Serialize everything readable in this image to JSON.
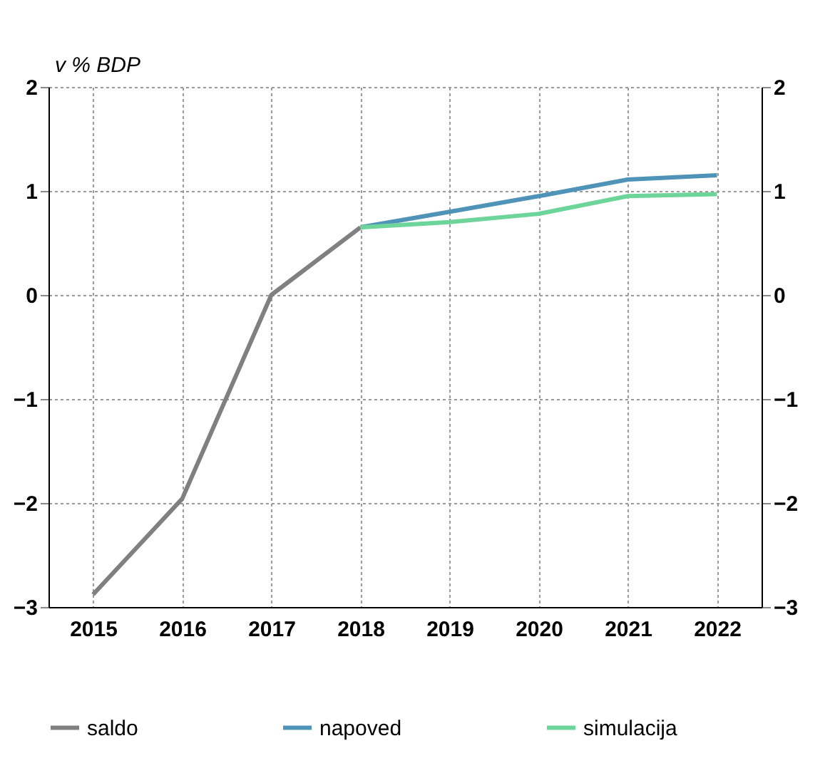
{
  "chart_data": {
    "type": "line",
    "ylabel": "v % BDP",
    "categories": [
      "2015",
      "2016",
      "2017",
      "2018",
      "2019",
      "2020",
      "2021",
      "2022"
    ],
    "series": [
      {
        "name": "saldo",
        "color": "#808080",
        "values": [
          -2.88,
          -1.96,
          0,
          0.65,
          null,
          null,
          null,
          null
        ]
      },
      {
        "name": "napoved",
        "color": "#4f93b8",
        "values": [
          null,
          null,
          null,
          0.65,
          0.8,
          0.95,
          1.11,
          1.15
        ]
      },
      {
        "name": "simulacija",
        "color": "#6dd49a",
        "values": [
          null,
          null,
          null,
          0.65,
          0.7,
          0.78,
          0.95,
          0.97
        ]
      }
    ],
    "ylim": [
      -3,
      2
    ],
    "yticks": [
      -3,
      -2,
      -1,
      0,
      1,
      2
    ],
    "y2lim": [
      -3,
      2
    ],
    "y2ticks": [
      -3,
      -2,
      -1,
      0,
      1,
      2
    ],
    "grid": true,
    "legend": "bottom",
    "marker": "none",
    "line_style": "solid"
  }
}
